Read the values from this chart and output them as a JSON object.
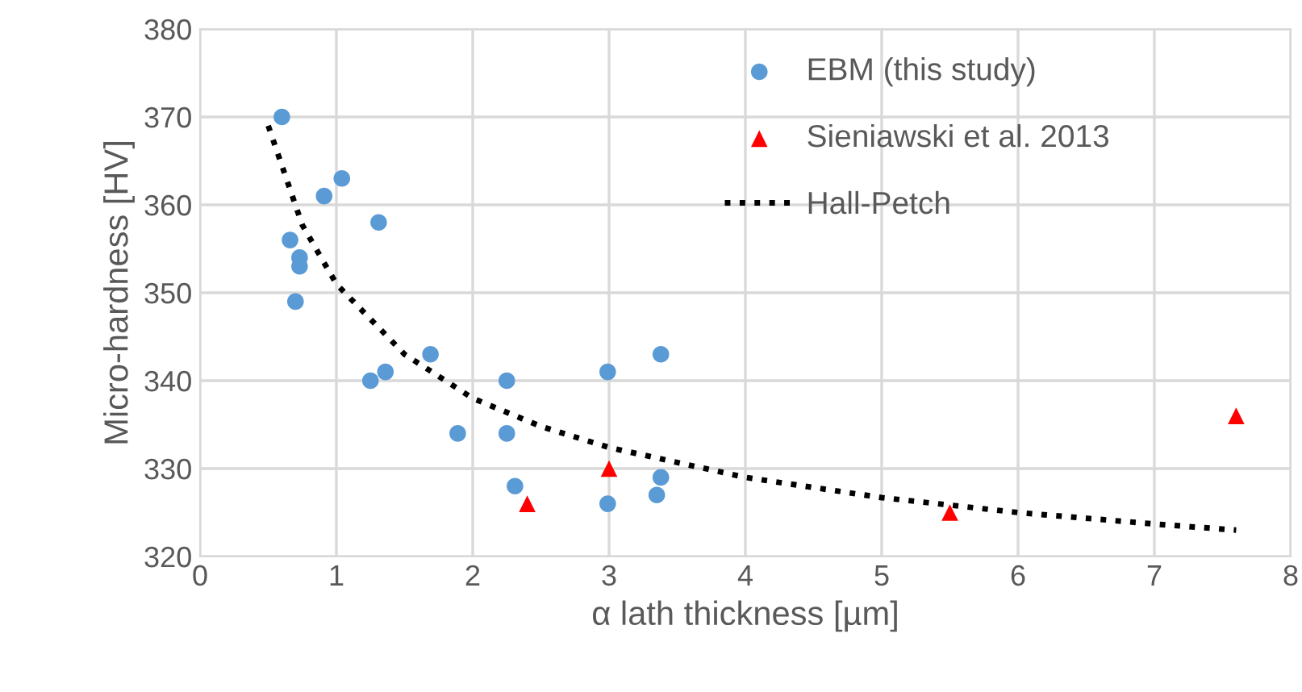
{
  "chart_data": {
    "type": "scatter",
    "xlabel": "α lath thickness [µm]",
    "ylabel": "Micro-hardness [HV]",
    "xlim": [
      0,
      8
    ],
    "ylim": [
      320,
      380
    ],
    "xticks": [
      0,
      1,
      2,
      3,
      4,
      5,
      6,
      7,
      8
    ],
    "yticks": [
      320,
      330,
      340,
      350,
      360,
      370,
      380
    ],
    "grid": true,
    "legend": "top right",
    "series": [
      {
        "name": "EBM (this study)",
        "color": "#5b9bd5",
        "marker": "circle",
        "x": [
          0.6,
          0.66,
          0.73,
          0.73,
          0.7,
          0.91,
          1.04,
          1.31,
          1.25,
          1.36,
          1.69,
          1.89,
          2.25,
          2.25,
          2.31,
          2.99,
          3.38,
          2.99,
          3.38,
          3.35
        ],
        "values": [
          370,
          356,
          354,
          353,
          349,
          361,
          363,
          358,
          340,
          341,
          343,
          334,
          340,
          334,
          328,
          341,
          343,
          326,
          329,
          327
        ]
      },
      {
        "name": "Sieniawski et al. 2013",
        "color": "#ff0000",
        "marker": "triangle",
        "x": [
          2.4,
          3.0,
          5.5,
          7.6
        ],
        "values": [
          326,
          330,
          325,
          336
        ]
      },
      {
        "name": "Hall-Petch",
        "type": "line",
        "color": "#000000",
        "line_style": "dotted",
        "marker": "none",
        "x": [
          0.5,
          0.75,
          1,
          1.5,
          2,
          2.5,
          3,
          4,
          5,
          6,
          7,
          7.6
        ],
        "values": [
          369,
          357.7,
          351,
          343,
          338,
          334.8,
          332.4,
          329,
          326.7,
          325,
          323.7,
          323
        ]
      }
    ]
  }
}
